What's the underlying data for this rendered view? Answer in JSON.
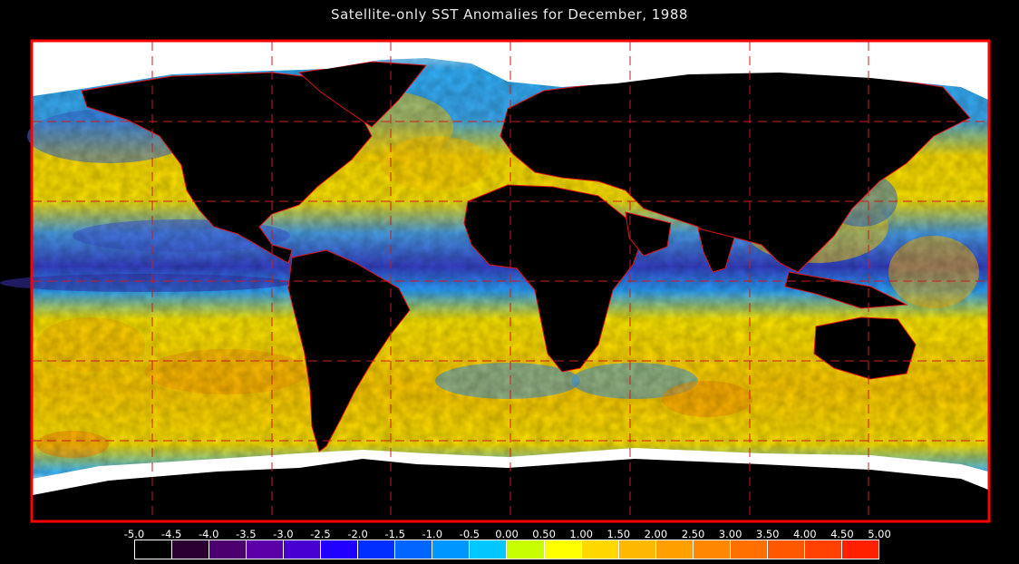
{
  "title": "Satellite-only SST Anomalies for December, 1988",
  "map": {
    "projection": "equirectangular",
    "frame_color": "#ff0000",
    "grid_color": "#c81e1e",
    "grid_style": "dashed",
    "land_color": "#000000",
    "ice_color": "#ffffff",
    "border_color": "#e01010"
  },
  "legend": {
    "ticks": [
      "-5.0",
      "-4.5",
      "-4.0",
      "-3.5",
      "-3.0",
      "-2.5",
      "-2.0",
      "-1.5",
      "-1.0",
      "-0.5",
      "0.00",
      "0.50",
      "1.00",
      "1.50",
      "2.00",
      "2.50",
      "3.00",
      "3.50",
      "4.00",
      "4.50",
      "5.00"
    ],
    "colors": [
      "#000000",
      "#2a0030",
      "#4c0070",
      "#5a00a8",
      "#4800d0",
      "#2200ff",
      "#0030ff",
      "#0066ff",
      "#0096ff",
      "#00c8ff",
      "#c8ff00",
      "#ffff00",
      "#ffd800",
      "#ffb800",
      "#ffa000",
      "#ff8800",
      "#ff7000",
      "#ff5800",
      "#ff4000",
      "#ff2000"
    ],
    "unit": ""
  }
}
